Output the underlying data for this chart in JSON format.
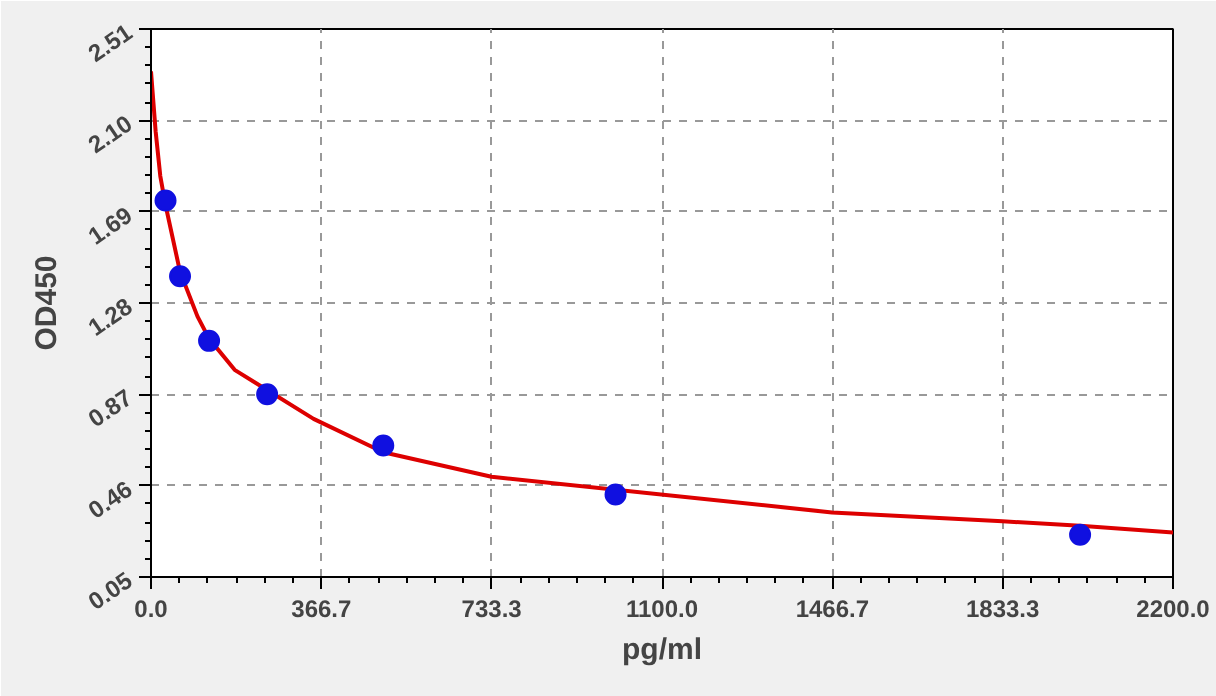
{
  "chart_data": {
    "type": "scatter",
    "xlabel": "pg/ml",
    "ylabel": "OD450",
    "xlim": [
      0,
      2200
    ],
    "ylim": [
      0.05,
      2.51
    ],
    "xticks": [
      {
        "value": 0,
        "label": "0.0"
      },
      366.7,
      733.3,
      {
        "value": 1100,
        "label": "1100.0"
      },
      1466.7,
      1833.3,
      {
        "value": 2200,
        "label": "2200.0"
      }
    ],
    "yticks": [
      0.05,
      0.46,
      0.87,
      1.28,
      1.69,
      {
        "value": 2.1,
        "label": "2.10"
      },
      2.51
    ],
    "grid": true,
    "series": [
      {
        "type": "line",
        "color": "#dd0000",
        "x": [
          0,
          10,
          20,
          31.25,
          62.5,
          100,
          125,
          180,
          350,
          500,
          733,
          1466,
          1833,
          2000,
          2200
        ],
        "values": [
          2.32,
          2.05,
          1.85,
          1.72,
          1.42,
          1.22,
          1.12,
          0.98,
          0.76,
          0.61,
          0.5,
          0.34,
          0.3,
          0.28,
          0.25
        ]
      },
      {
        "marker": "circle",
        "color": "#1010e0",
        "x": [
          31.25,
          62.5,
          125,
          250,
          500,
          1000,
          2000
        ],
        "values": [
          1.74,
          1.4,
          1.11,
          0.87,
          0.64,
          0.42,
          0.24
        ]
      }
    ]
  }
}
